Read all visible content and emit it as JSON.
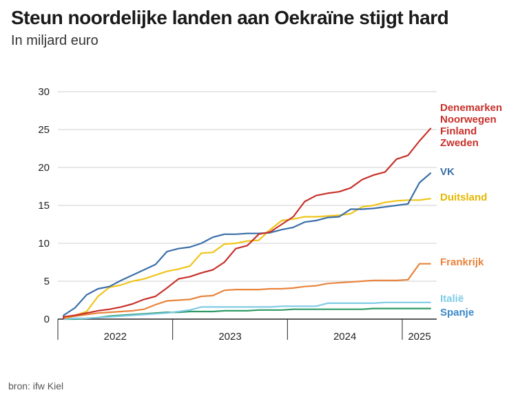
{
  "title": "Steun noordelijke landen aan Oekraïne stijgt hard",
  "subtitle": "In miljard euro",
  "source": "bron: ifw Kiel",
  "chart_data": {
    "type": "line",
    "title": "Steun noordelijke landen aan Oekraïne stijgt hard",
    "subtitle": "In miljard euro",
    "ylim": [
      0,
      30
    ],
    "yticks": [
      0,
      5,
      10,
      15,
      20,
      25,
      30
    ],
    "xlim": [
      2022.0,
      2025.3
    ],
    "x_categories": [
      "2022",
      "2023",
      "2024",
      "2025"
    ],
    "grid": "horizontal",
    "legend": "direct labels at line ends (right)",
    "series": [
      {
        "name": "Denemarken\nNoorwegen\nFinland\nZweden",
        "color": "#c8302a",
        "x": [
          2022.05,
          2022.15,
          2022.25,
          2022.35,
          2022.45,
          2022.55,
          2022.65,
          2022.75,
          2022.85,
          2022.95,
          2023.05,
          2023.15,
          2023.25,
          2023.35,
          2023.45,
          2023.55,
          2023.65,
          2023.75,
          2023.85,
          2023.95,
          2024.05,
          2024.15,
          2024.25,
          2024.35,
          2024.45,
          2024.55,
          2024.65,
          2024.75,
          2024.85,
          2024.95,
          2025.05,
          2025.15,
          2025.25
        ],
        "values": [
          0.3,
          0.5,
          0.8,
          1.1,
          1.3,
          1.6,
          2.0,
          2.6,
          3.0,
          4.1,
          5.3,
          5.6,
          6.1,
          6.5,
          7.5,
          9.3,
          9.7,
          11.2,
          11.5,
          12.5,
          13.5,
          15.5,
          16.3,
          16.6,
          16.8,
          17.3,
          18.4,
          19.0,
          19.4,
          21.1,
          21.6,
          23.5,
          25.2
        ]
      },
      {
        "name": "VK",
        "color": "#3a6ea8",
        "x": [
          2022.05,
          2022.15,
          2022.25,
          2022.35,
          2022.45,
          2022.55,
          2022.65,
          2022.75,
          2022.85,
          2022.95,
          2023.05,
          2023.15,
          2023.25,
          2023.35,
          2023.45,
          2023.55,
          2023.65,
          2023.75,
          2023.85,
          2023.95,
          2024.05,
          2024.15,
          2024.25,
          2024.35,
          2024.45,
          2024.55,
          2024.65,
          2024.75,
          2024.85,
          2024.95,
          2025.05,
          2025.15,
          2025.25
        ],
        "values": [
          0.5,
          1.5,
          3.2,
          4.0,
          4.3,
          5.1,
          5.8,
          6.5,
          7.2,
          8.9,
          9.3,
          9.5,
          10.0,
          10.8,
          11.2,
          11.2,
          11.3,
          11.3,
          11.4,
          11.8,
          12.1,
          12.8,
          13.0,
          13.4,
          13.5,
          14.5,
          14.5,
          14.6,
          14.8,
          15.0,
          15.2,
          18.0,
          19.3
        ]
      },
      {
        "name": "Duitsland",
        "color": "#f0c419",
        "x": [
          2022.05,
          2022.15,
          2022.25,
          2022.35,
          2022.45,
          2022.55,
          2022.65,
          2022.75,
          2022.85,
          2022.95,
          2023.05,
          2023.15,
          2023.25,
          2023.35,
          2023.45,
          2023.55,
          2023.65,
          2023.75,
          2023.85,
          2023.95,
          2024.05,
          2024.15,
          2024.25,
          2024.35,
          2024.45,
          2024.55,
          2024.65,
          2024.75,
          2024.85,
          2024.95,
          2025.05,
          2025.15,
          2025.25
        ],
        "values": [
          0.2,
          0.5,
          1.0,
          3.0,
          4.2,
          4.5,
          5.0,
          5.3,
          5.8,
          6.3,
          6.6,
          7.0,
          8.7,
          8.8,
          9.9,
          10.0,
          10.3,
          10.4,
          11.8,
          13.0,
          13.2,
          13.5,
          13.5,
          13.6,
          13.7,
          13.9,
          14.8,
          15.0,
          15.4,
          15.6,
          15.7,
          15.7,
          15.9
        ]
      },
      {
        "name": "Frankrijk",
        "color": "#e8843c",
        "x": [
          2022.05,
          2022.15,
          2022.25,
          2022.35,
          2022.45,
          2022.55,
          2022.65,
          2022.75,
          2022.85,
          2022.95,
          2023.05,
          2023.15,
          2023.25,
          2023.35,
          2023.45,
          2023.55,
          2023.65,
          2023.75,
          2023.85,
          2023.95,
          2024.05,
          2024.15,
          2024.25,
          2024.35,
          2024.45,
          2024.55,
          2024.65,
          2024.75,
          2024.85,
          2024.95,
          2025.05,
          2025.15,
          2025.25
        ],
        "values": [
          0.1,
          0.4,
          0.6,
          0.8,
          0.9,
          1.0,
          1.1,
          1.3,
          1.9,
          2.4,
          2.5,
          2.6,
          3.0,
          3.1,
          3.8,
          3.9,
          3.9,
          3.9,
          4.0,
          4.0,
          4.1,
          4.3,
          4.4,
          4.7,
          4.8,
          4.9,
          5.0,
          5.1,
          5.1,
          5.1,
          5.2,
          7.3,
          7.3
        ]
      },
      {
        "name": "Italië",
        "color": "#7fcbe6",
        "x": [
          2022.05,
          2022.15,
          2022.25,
          2022.35,
          2022.45,
          2022.55,
          2022.65,
          2022.75,
          2022.85,
          2022.95,
          2023.05,
          2023.15,
          2023.25,
          2023.35,
          2023.45,
          2023.55,
          2023.65,
          2023.75,
          2023.85,
          2023.95,
          2024.05,
          2024.15,
          2024.25,
          2024.35,
          2024.45,
          2024.55,
          2024.65,
          2024.75,
          2024.85,
          2024.95,
          2025.05,
          2025.15,
          2025.25
        ],
        "values": [
          0.0,
          0.1,
          0.1,
          0.2,
          0.3,
          0.4,
          0.5,
          0.6,
          0.7,
          0.8,
          1.0,
          1.2,
          1.6,
          1.6,
          1.6,
          1.6,
          1.6,
          1.6,
          1.6,
          1.7,
          1.7,
          1.7,
          1.7,
          2.1,
          2.1,
          2.1,
          2.1,
          2.1,
          2.2,
          2.2,
          2.2,
          2.2,
          2.2
        ]
      },
      {
        "name": "Spanje",
        "color": "#2e9a66",
        "x": [
          2022.05,
          2022.15,
          2022.25,
          2022.35,
          2022.45,
          2022.55,
          2022.65,
          2022.75,
          2022.85,
          2022.95,
          2023.05,
          2023.15,
          2023.25,
          2023.35,
          2023.45,
          2023.55,
          2023.65,
          2023.75,
          2023.85,
          2023.95,
          2024.05,
          2024.15,
          2024.25,
          2024.35,
          2024.45,
          2024.55,
          2024.65,
          2024.75,
          2024.85,
          2024.95,
          2025.05,
          2025.15,
          2025.25
        ],
        "values": [
          0.0,
          0.0,
          0.1,
          0.2,
          0.4,
          0.5,
          0.6,
          0.7,
          0.8,
          0.9,
          0.9,
          1.0,
          1.0,
          1.0,
          1.1,
          1.1,
          1.1,
          1.2,
          1.2,
          1.2,
          1.3,
          1.3,
          1.3,
          1.3,
          1.3,
          1.3,
          1.3,
          1.4,
          1.4,
          1.4,
          1.4,
          1.4,
          1.4
        ]
      }
    ],
    "labels": [
      {
        "text": "Denemarken",
        "color": "#c8302a"
      },
      {
        "text": "Noorwegen",
        "color": "#c8302a"
      },
      {
        "text": "Finland",
        "color": "#c8302a"
      },
      {
        "text": "Zweden",
        "color": "#c8302a"
      },
      {
        "text": "VK",
        "color": "#3a6ea8"
      },
      {
        "text": "Duitsland",
        "color": "#e6b800"
      },
      {
        "text": "Frankrijk",
        "color": "#e8843c"
      },
      {
        "text": "Italië",
        "color": "#7fcbe6"
      },
      {
        "text": "Spanje",
        "color": "#3a87c8"
      }
    ]
  }
}
